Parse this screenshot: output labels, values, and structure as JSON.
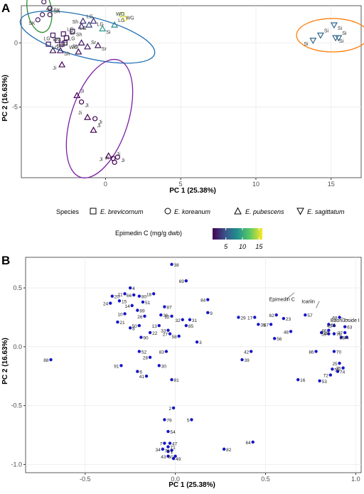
{
  "chart_data": [
    {
      "type": "scatter",
      "panel": "A",
      "xlabel": "PC 1 (25.38%)",
      "ylabel": "PC 2 (16.63%)",
      "xlim": [
        -5.6,
        17
      ],
      "ylim": [
        -10.5,
        2.9
      ],
      "x_ticks": [
        0,
        5,
        10,
        15
      ],
      "y_ticks": [
        -5,
        0
      ],
      "grid": true,
      "legend": {
        "position": "bottom",
        "species_title": "Species",
        "species": [
          "E. brevicornum",
          "E. koreanum",
          "E. pubescens",
          "E. sagittatum"
        ],
        "color_title": "Epimedin C (mg/g dwb)",
        "color_ticks": [
          5,
          10,
          15
        ]
      },
      "ellipses": [
        {
          "group": "SK",
          "color": "#2e8b2e",
          "cx": -4.4,
          "cy": 2.6,
          "rx": 0.8,
          "ry": 1.8,
          "angle": -10
        },
        {
          "group": "LG/WG/Sh/Sr",
          "color": "#1f6fb4",
          "cx": -1.2,
          "cy": 0.45,
          "rx": 4.6,
          "ry": 1.6,
          "angle": 14
        },
        {
          "group": "Ji",
          "color": "#7b1fa2",
          "cx": -0.4,
          "cy": -5.9,
          "rx": 1.9,
          "ry": 4.8,
          "angle": 18
        },
        {
          "group": "Si",
          "color": "#ff7f0e",
          "cx": 15.1,
          "cy": 0.6,
          "rx": 2.4,
          "ry": 1.3,
          "angle": 0
        }
      ],
      "points": [
        {
          "label": "SK",
          "x": -4.1,
          "y": 3.2,
          "shape": "circle",
          "epi": 2
        },
        {
          "label": "SK",
          "x": -3.7,
          "y": 2.7,
          "shape": "circle",
          "epi": 2
        },
        {
          "label": "SK",
          "x": -4.2,
          "y": 2.2,
          "shape": "circle",
          "epi": 2
        },
        {
          "label": "SK",
          "x": -4.5,
          "y": 1.8,
          "shape": "circle",
          "epi": 2
        },
        {
          "label": "SK",
          "x": -3.7,
          "y": 2.2,
          "shape": "circle",
          "epi": 2
        },
        {
          "label": "WG",
          "x": 1.1,
          "y": 2.2,
          "shape": "square",
          "epi": 14
        },
        {
          "label": "WG",
          "x": 1.3,
          "y": 1.9,
          "shape": "circle",
          "epi": 16
        },
        {
          "label": "LG",
          "x": -0.8,
          "y": 1.7,
          "shape": "triangle",
          "epi": 3
        },
        {
          "label": "LG",
          "x": -1.5,
          "y": 1.7,
          "shape": "triangle",
          "epi": 3
        },
        {
          "label": "LG",
          "x": -1.1,
          "y": 1.4,
          "shape": "triangle",
          "epi": 4
        },
        {
          "label": "LG",
          "x": 0.6,
          "y": 1.4,
          "shape": "triangle",
          "epi": 8
        },
        {
          "label": "Si",
          "x": -0.2,
          "y": 1.1,
          "shape": "triangle",
          "epi": 9
        },
        {
          "label": "Sh",
          "x": -1.6,
          "y": 1.3,
          "shape": "triangle",
          "epi": 3
        },
        {
          "label": "Sh",
          "x": -2.2,
          "y": 0.9,
          "shape": "square",
          "epi": 2
        },
        {
          "label": "LG",
          "x": -2.8,
          "y": 0.7,
          "shape": "square",
          "epi": 2
        },
        {
          "label": "LG",
          "x": -3.5,
          "y": 0.6,
          "shape": "square",
          "epi": 2
        },
        {
          "label": "Sr",
          "x": -2.6,
          "y": 0.4,
          "shape": "square",
          "epi": 2
        },
        {
          "label": "LG",
          "x": -3.2,
          "y": 0.2,
          "shape": "square",
          "epi": 2
        },
        {
          "label": "WG",
          "x": -2.9,
          "y": -0.1,
          "shape": "square",
          "epi": 2
        },
        {
          "label": "LG",
          "x": -3.8,
          "y": -0.1,
          "shape": "square",
          "epi": 2
        },
        {
          "label": "LG",
          "x": -2.7,
          "y": 0.0,
          "shape": "square",
          "epi": 2
        },
        {
          "label": "Sh",
          "x": -1.6,
          "y": 0.0,
          "shape": "triangle",
          "epi": 2
        },
        {
          "label": "Sr",
          "x": -1.2,
          "y": -0.3,
          "shape": "triangle",
          "epi": 2
        },
        {
          "label": "Sh",
          "x": -3.0,
          "y": -0.6,
          "shape": "triangle",
          "epi": 2
        },
        {
          "label": "WG",
          "x": -1.8,
          "y": -0.7,
          "shape": "triangle",
          "epi": 2
        },
        {
          "label": "Sr",
          "x": -0.5,
          "y": -0.2,
          "shape": "triangle",
          "epi": 2
        },
        {
          "label": "Sh",
          "x": -3.5,
          "y": -0.6,
          "shape": "triangle",
          "epi": 2
        },
        {
          "label": "Ji",
          "x": -2.9,
          "y": -1.7,
          "shape": "triangle",
          "epi": 1
        },
        {
          "label": "Ji",
          "x": -1.9,
          "y": -4.1,
          "shape": "triangle",
          "epi": 1
        },
        {
          "label": "Ji",
          "x": -1.6,
          "y": -4.6,
          "shape": "circle",
          "epi": 1
        },
        {
          "label": "Ji",
          "x": -1.2,
          "y": -5.8,
          "shape": "triangle",
          "epi": 1
        },
        {
          "label": "Ji",
          "x": -0.7,
          "y": -5.9,
          "shape": "circle",
          "epi": 1
        },
        {
          "label": "Ji",
          "x": -0.8,
          "y": -6.8,
          "shape": "triangle",
          "epi": 1
        },
        {
          "label": "Ji",
          "x": 0.2,
          "y": -8.8,
          "shape": "triangle",
          "epi": 1
        },
        {
          "label": "Ji",
          "x": 0.5,
          "y": -9.0,
          "shape": "circle",
          "epi": 1
        },
        {
          "label": "Ji",
          "x": 0.8,
          "y": -8.9,
          "shape": "circle",
          "epi": 1
        },
        {
          "label": "Ji",
          "x": 0.6,
          "y": -9.3,
          "shape": "circle",
          "epi": 1
        },
        {
          "label": "Si",
          "x": 15.2,
          "y": 1.4,
          "shape": "invtriangle",
          "epi": 6
        },
        {
          "label": "Si",
          "x": 14.3,
          "y": 0.6,
          "shape": "invtriangle",
          "epi": 6
        },
        {
          "label": "Si",
          "x": 13.8,
          "y": 0.2,
          "shape": "invtriangle",
          "epi": 6
        },
        {
          "label": "Si",
          "x": 15.5,
          "y": 0.4,
          "shape": "invtriangle",
          "epi": 6
        },
        {
          "label": "Si",
          "x": 15.3,
          "y": 0.4,
          "shape": "invtriangle",
          "epi": 6
        }
      ]
    },
    {
      "type": "scatter",
      "panel": "B",
      "xlabel": "PC 1 (25.38%)",
      "ylabel": "PC 2 (16.63%)",
      "xlim": [
        -0.83,
        1.03
      ],
      "ylim": [
        -1.07,
        0.76
      ],
      "x_ticks": [
        -0.5,
        0.0,
        0.5,
        1.0
      ],
      "x_tick_labels": [
        "-0.5",
        "0.0",
        "0.5",
        "1.0"
      ],
      "y_ticks": [
        -1.0,
        -0.5,
        0.0,
        0.5
      ],
      "y_tick_labels": [
        "-1.0",
        "-0.5",
        "0.0",
        "0.5"
      ],
      "grid": true,
      "point_color": "#1515c8",
      "annotations": [
        {
          "text": "Epimedin C",
          "x": 0.66,
          "y": 0.46,
          "tx": 0.52,
          "ty": 0.39
        },
        {
          "text": "Icariin",
          "x": 0.78,
          "y": 0.33,
          "tx": 0.7,
          "ty": 0.37
        },
        {
          "text": "Baohuoside I",
          "x": 0.91,
          "y": 0.25,
          "tx": 0.86,
          "ty": 0.21
        }
      ],
      "points": [
        {
          "id": "38",
          "x": -0.02,
          "y": 0.7
        },
        {
          "id": "69",
          "x": 0.06,
          "y": 0.56
        },
        {
          "id": "4",
          "x": -0.25,
          "y": 0.5
        },
        {
          "id": "11",
          "x": -0.28,
          "y": 0.45
        },
        {
          "id": "20",
          "x": -0.35,
          "y": 0.43
        },
        {
          "id": "66",
          "x": -0.23,
          "y": 0.44
        },
        {
          "id": "80",
          "x": -0.2,
          "y": 0.43
        },
        {
          "id": "18",
          "x": -0.12,
          "y": 0.45
        },
        {
          "id": "15",
          "x": -0.31,
          "y": 0.39
        },
        {
          "id": "24",
          "x": -0.36,
          "y": 0.37
        },
        {
          "id": "51",
          "x": -0.18,
          "y": 0.38
        },
        {
          "id": "14",
          "x": -0.24,
          "y": 0.35
        },
        {
          "id": "87",
          "x": -0.06,
          "y": 0.34
        },
        {
          "id": "84",
          "x": 0.18,
          "y": 0.4
        },
        {
          "id": "89",
          "x": -0.21,
          "y": 0.31
        },
        {
          "id": "10",
          "x": -0.28,
          "y": 0.28
        },
        {
          "id": "9",
          "x": 0.18,
          "y": 0.29
        },
        {
          "id": "26",
          "x": -0.17,
          "y": 0.26
        },
        {
          "id": "36",
          "x": -0.08,
          "y": 0.27
        },
        {
          "id": "12",
          "x": -0.02,
          "y": 0.26
        },
        {
          "id": "21",
          "x": -0.32,
          "y": 0.21
        },
        {
          "id": "32",
          "x": 0.04,
          "y": 0.23
        },
        {
          "id": "31",
          "x": 0.08,
          "y": 0.23
        },
        {
          "id": "50",
          "x": -0.2,
          "y": 0.18
        },
        {
          "id": "8",
          "x": -0.25,
          "y": 0.16
        },
        {
          "id": "13",
          "x": -0.09,
          "y": 0.18
        },
        {
          "id": "85",
          "x": 0.06,
          "y": 0.18
        },
        {
          "id": "33",
          "x": -0.04,
          "y": 0.14
        },
        {
          "id": "22",
          "x": -0.14,
          "y": 0.12
        },
        {
          "id": "27",
          "x": -0.03,
          "y": 0.11
        },
        {
          "id": "90",
          "x": -0.19,
          "y": 0.08
        },
        {
          "id": "58",
          "x": 0.02,
          "y": 0.09
        },
        {
          "id": "3",
          "x": 0.12,
          "y": 0.04
        },
        {
          "id": "83",
          "x": -0.05,
          "y": -0.04
        },
        {
          "id": "52",
          "x": -0.2,
          "y": -0.04
        },
        {
          "id": "28",
          "x": -0.14,
          "y": -0.09
        },
        {
          "id": "30",
          "x": -0.09,
          "y": -0.16
        },
        {
          "id": "91",
          "x": -0.3,
          "y": -0.16
        },
        {
          "id": "6",
          "x": -0.21,
          "y": -0.21
        },
        {
          "id": "41",
          "x": -0.16,
          "y": -0.25
        },
        {
          "id": "81",
          "x": -0.02,
          "y": -0.28
        },
        {
          "id": "88",
          "x": -0.69,
          "y": -0.11
        },
        {
          "id": "29",
          "x": 0.35,
          "y": 0.25
        },
        {
          "id": "17",
          "x": 0.44,
          "y": 0.25
        },
        {
          "id": "35",
          "x": 0.46,
          "y": 0.19
        },
        {
          "id": "62",
          "x": 0.56,
          "y": 0.27
        },
        {
          "id": "23",
          "x": 0.6,
          "y": 0.24
        },
        {
          "id": "67",
          "x": 0.53,
          "y": 0.19
        },
        {
          "id": "57",
          "x": 0.72,
          "y": 0.27
        },
        {
          "id": "48",
          "x": 0.64,
          "y": 0.13
        },
        {
          "id": "56",
          "x": 0.55,
          "y": 0.07
        },
        {
          "id": "42",
          "x": 0.42,
          "y": -0.04
        },
        {
          "id": "39",
          "x": 0.37,
          "y": -0.11
        },
        {
          "id": "86",
          "x": 0.78,
          "y": -0.04
        },
        {
          "id": "16",
          "x": 0.68,
          "y": -0.28
        },
        {
          "id": "68",
          "x": 0.91,
          "y": 0.25
        },
        {
          "id": "61",
          "x": 0.85,
          "y": 0.19
        },
        {
          "id": "45",
          "x": 0.88,
          "y": 0.18
        },
        {
          "id": "63",
          "x": 0.94,
          "y": 0.17
        },
        {
          "id": "46",
          "x": 0.85,
          "y": 0.14
        },
        {
          "id": "19",
          "x": 0.81,
          "y": 0.12
        },
        {
          "id": "59",
          "x": 0.85,
          "y": 0.11
        },
        {
          "id": "76",
          "x": 0.88,
          "y": 0.11
        },
        {
          "id": "77",
          "x": 0.94,
          "y": 0.12
        },
        {
          "id": "44",
          "x": 0.92,
          "y": 0.08
        },
        {
          "id": "65",
          "x": 0.95,
          "y": 0.08
        },
        {
          "id": "70",
          "x": 0.88,
          "y": -0.04
        },
        {
          "id": "25",
          "x": 0.91,
          "y": -0.14
        },
        {
          "id": "55",
          "x": 0.87,
          "y": -0.19
        },
        {
          "id": "75",
          "x": 0.93,
          "y": -0.18
        },
        {
          "id": "74",
          "x": 0.9,
          "y": -0.21
        },
        {
          "id": "72",
          "x": 0.86,
          "y": -0.24
        },
        {
          "id": "53",
          "x": 0.8,
          "y": -0.29
        },
        {
          "id": "2",
          "x": -0.01,
          "y": -0.52
        },
        {
          "id": "79",
          "x": -0.06,
          "y": -0.62
        },
        {
          "id": "5",
          "x": 0.09,
          "y": -0.62
        },
        {
          "id": "54",
          "x": -0.04,
          "y": -0.72
        },
        {
          "id": "7",
          "x": -0.06,
          "y": -0.82
        },
        {
          "id": "47",
          "x": -0.03,
          "y": -0.82
        },
        {
          "id": "34",
          "x": -0.07,
          "y": -0.87
        },
        {
          "id": "71",
          "x": -0.04,
          "y": -0.85
        },
        {
          "id": "78",
          "x": -0.02,
          "y": -0.88
        },
        {
          "id": "1",
          "x": -0.04,
          "y": -0.89
        },
        {
          "id": "43",
          "x": -0.04,
          "y": -0.93
        },
        {
          "id": "49",
          "x": -0.01,
          "y": -0.95
        },
        {
          "id": "60",
          "x": 0.0,
          "y": -0.93
        },
        {
          "id": "82",
          "x": 0.27,
          "y": -0.87
        },
        {
          "id": "64",
          "x": 0.43,
          "y": -0.81
        }
      ]
    }
  ]
}
